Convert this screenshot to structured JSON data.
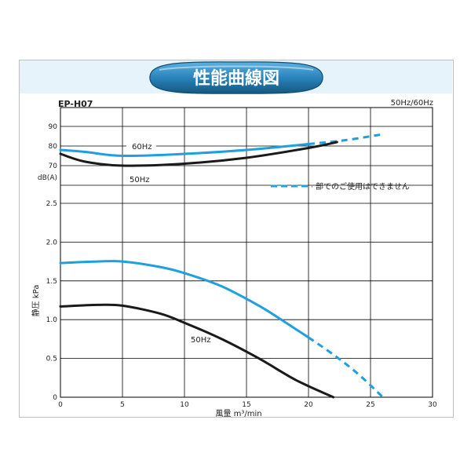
{
  "banner": {
    "title": "性能曲線図"
  },
  "model": "EP-H07",
  "frequency_label": "50Hz/60Hz",
  "colors": {
    "series_60hz": "#1e9fe0",
    "series_50hz": "#1a1a1a",
    "grid": "#000000",
    "banner": "#1d6c9a",
    "band": "#e6f3fb"
  },
  "chart_data": {
    "type": "line",
    "xlabel": "風量 m³/min",
    "x_ticks": [
      "0",
      "5",
      "10",
      "15",
      "20",
      "25",
      "30"
    ],
    "xlim": [
      0,
      30
    ],
    "grid": true,
    "legend": {
      "dashed_note": "部でのご使用はできません",
      "placement": "top-right"
    },
    "panels": [
      {
        "name": "noise",
        "ylabel": "dB(A)",
        "ylim": [
          70,
          90
        ],
        "y_ticks": [
          "70",
          "80",
          "90"
        ],
        "series": [
          {
            "name": "60Hz",
            "points": [
              [
                0,
                78
              ],
              [
                2,
                77
              ],
              [
                5,
                75
              ],
              [
                10,
                76
              ],
              [
                15,
                78
              ],
              [
                20,
                81
              ]
            ],
            "dashed_points": [
              [
                20,
                81
              ],
              [
                23,
                83
              ],
              [
                26,
                86
              ]
            ]
          },
          {
            "name": "50Hz",
            "points": [
              [
                0,
                76
              ],
              [
                2,
                72
              ],
              [
                5,
                70
              ],
              [
                10,
                71
              ],
              [
                15,
                74
              ],
              [
                20,
                79
              ],
              [
                22.3,
                82
              ]
            ]
          }
        ]
      },
      {
        "name": "static_pressure",
        "ylabel": "静圧 kPa",
        "ylim": [
          0,
          2.5
        ],
        "y_ticks": [
          "0",
          "0.5",
          "1.0",
          "1.5",
          "2.0",
          "2.5"
        ],
        "series": [
          {
            "name": "60Hz",
            "points": [
              [
                0,
                1.73
              ],
              [
                3,
                1.75
              ],
              [
                5,
                1.75
              ],
              [
                8,
                1.68
              ],
              [
                10,
                1.6
              ],
              [
                13,
                1.43
              ],
              [
                16,
                1.18
              ],
              [
                18,
                0.98
              ],
              [
                20,
                0.77
              ]
            ],
            "dashed_points": [
              [
                20,
                0.77
              ],
              [
                22,
                0.55
              ],
              [
                24,
                0.3
              ],
              [
                26,
                0.0
              ]
            ]
          },
          {
            "name": "50Hz",
            "points": [
              [
                0,
                1.17
              ],
              [
                3,
                1.19
              ],
              [
                5,
                1.18
              ],
              [
                8,
                1.08
              ],
              [
                10,
                0.96
              ],
              [
                13,
                0.75
              ],
              [
                16,
                0.5
              ],
              [
                19,
                0.22
              ],
              [
                22,
                0.0
              ]
            ]
          }
        ]
      }
    ],
    "annotations": [
      "60Hz",
      "50Hz",
      "50Hz"
    ]
  }
}
